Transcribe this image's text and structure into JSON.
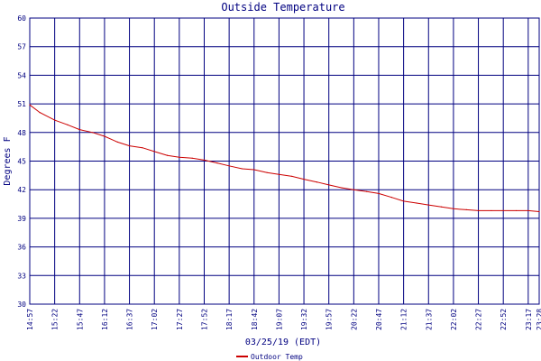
{
  "chart_data": {
    "type": "line",
    "title": "Outside Temperature",
    "xlabel": "03/25/19 (EDT)",
    "ylabel": "Degrees F",
    "ylim": [
      30,
      60
    ],
    "yticks": [
      30,
      33,
      36,
      39,
      42,
      45,
      48,
      51,
      54,
      57,
      60
    ],
    "xticks": [
      "14:57",
      "15:22",
      "15:47",
      "16:12",
      "16:37",
      "17:02",
      "17:27",
      "17:52",
      "18:17",
      "18:42",
      "19:07",
      "19:32",
      "19:57",
      "20:22",
      "20:47",
      "21:12",
      "21:37",
      "22:02",
      "22:27",
      "22:52",
      "23:17",
      "23:28"
    ],
    "grid": true,
    "legend_position": "bottom-left",
    "colors": {
      "background": "#ffffff",
      "frame": "#000080",
      "grid": "#000080",
      "series": "#cc0000"
    },
    "series": [
      {
        "name": "Outdoor Temp",
        "x": [
          "14:57",
          "15:07",
          "15:22",
          "15:35",
          "15:47",
          "16:00",
          "16:12",
          "16:25",
          "16:37",
          "16:50",
          "17:02",
          "17:15",
          "17:27",
          "17:40",
          "17:52",
          "18:05",
          "18:17",
          "18:30",
          "18:42",
          "18:55",
          "19:07",
          "19:20",
          "19:32",
          "19:45",
          "19:57",
          "20:10",
          "20:22",
          "20:35",
          "20:47",
          "21:00",
          "21:12",
          "21:25",
          "21:37",
          "21:50",
          "22:02",
          "22:15",
          "22:27",
          "22:40",
          "22:52",
          "23:05",
          "23:17",
          "23:28"
        ],
        "values": [
          50.9,
          50.1,
          49.3,
          48.8,
          48.3,
          48.0,
          47.6,
          47.0,
          46.6,
          46.4,
          46.0,
          45.6,
          45.4,
          45.3,
          45.1,
          44.8,
          44.5,
          44.2,
          44.1,
          43.8,
          43.6,
          43.4,
          43.1,
          42.8,
          42.5,
          42.2,
          42.0,
          41.8,
          41.6,
          41.2,
          40.8,
          40.6,
          40.4,
          40.2,
          40.0,
          39.9,
          39.8,
          39.8,
          39.8,
          39.8,
          39.8,
          39.7
        ]
      }
    ]
  }
}
